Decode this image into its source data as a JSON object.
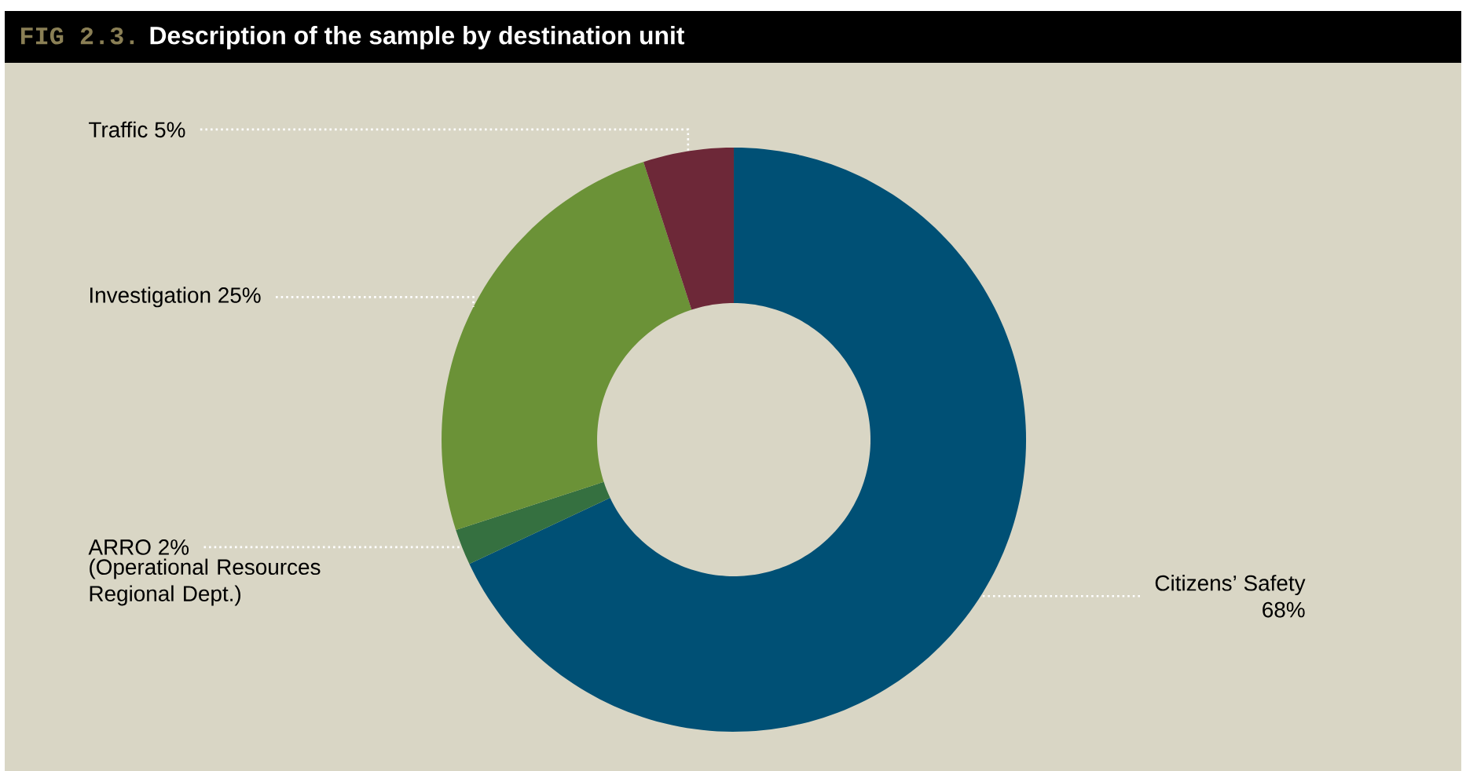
{
  "chart_data": {
    "type": "donut",
    "title": "Description of the sample by destination unit",
    "categories": [
      "Citizens’ Safety",
      "ARRO",
      "Investigation",
      "Traffic"
    ],
    "values": [
      68,
      2,
      25,
      5
    ],
    "value_labels": [
      "68%",
      "2%",
      "25%",
      "5%"
    ],
    "colors": [
      "#005075",
      "#357040",
      "#6b9237",
      "#6d2838"
    ],
    "annotations": [
      "FIG 2.3.",
      "(Operational Resources Regional Dept.)"
    ]
  }
}
